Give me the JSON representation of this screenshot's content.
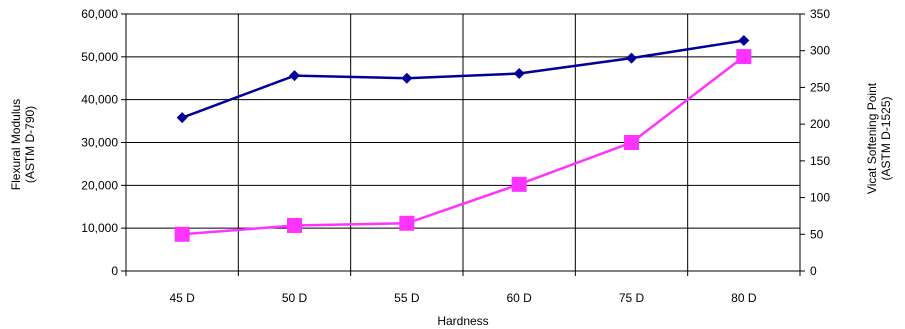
{
  "chart_data": {
    "type": "line",
    "title": "",
    "xlabel": "Hardness",
    "ylabel": [
      "Flexural Modulus",
      "(ASTM D-790)"
    ],
    "y2label": [
      "Vicat Softening Point",
      "(ASTM D-1525)"
    ],
    "categories": [
      "45 D",
      "50 D",
      "55 D",
      "60 D",
      "75 D",
      "80 D"
    ],
    "ylim": [
      0,
      60000
    ],
    "y_ticks": [
      "0",
      "10,000",
      "20,000",
      "30,000",
      "40,000",
      "50,000",
      "60,000"
    ],
    "y2lim": [
      0,
      350
    ],
    "y2_ticks": [
      "0",
      "50",
      "100",
      "150",
      "200",
      "250",
      "300",
      "350"
    ],
    "grid": true,
    "legend": "none",
    "series": [
      {
        "axis": "left",
        "marker": "diamond",
        "color": "#000099",
        "values": [
          35800,
          45600,
          45000,
          46100,
          49700,
          53800
        ]
      },
      {
        "axis": "right",
        "marker": "square",
        "color": "#ff33ff",
        "values": [
          50,
          62,
          65,
          118,
          175,
          292
        ]
      }
    ]
  }
}
